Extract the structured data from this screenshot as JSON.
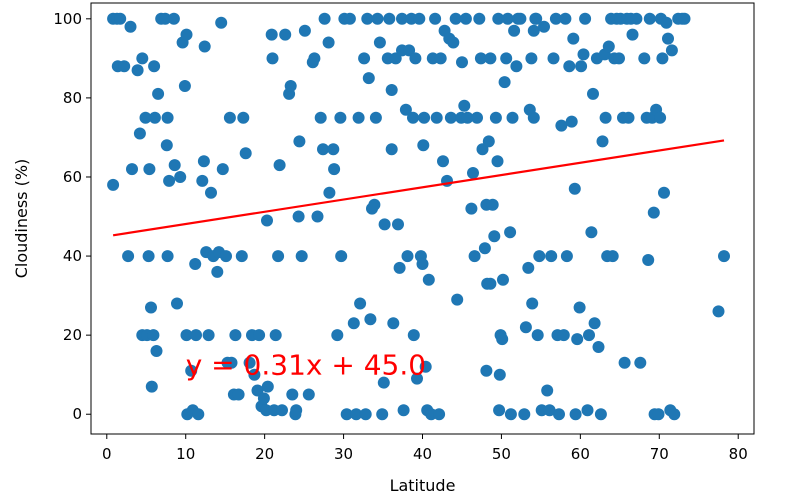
{
  "chart_data": {
    "type": "scatter",
    "xlabel": "Latitude",
    "ylabel": "Cloudiness (%)",
    "xlim": [
      -2,
      82
    ],
    "ylim": [
      -5,
      104
    ],
    "xticks": [
      0,
      10,
      20,
      30,
      40,
      50,
      60,
      70,
      80
    ],
    "yticks": [
      0,
      20,
      40,
      60,
      80,
      100
    ],
    "point_color": "#1f77b4",
    "line_color": "#ff0000",
    "grid": false,
    "points": [
      [
        0.8,
        58
      ],
      [
        0.8,
        100
      ],
      [
        1.3,
        100
      ],
      [
        1.4,
        88
      ],
      [
        1.7,
        100
      ],
      [
        2.2,
        88
      ],
      [
        2.7,
        40
      ],
      [
        3.0,
        98
      ],
      [
        3.2,
        62
      ],
      [
        3.9,
        87
      ],
      [
        4.2,
        71
      ],
      [
        4.5,
        90
      ],
      [
        4.5,
        20
      ],
      [
        4.9,
        75
      ],
      [
        5.1,
        20
      ],
      [
        5.3,
        40
      ],
      [
        5.4,
        62
      ],
      [
        5.6,
        27
      ],
      [
        5.7,
        7
      ],
      [
        5.9,
        20
      ],
      [
        6.0,
        88
      ],
      [
        6.1,
        75
      ],
      [
        6.3,
        16
      ],
      [
        6.5,
        81
      ],
      [
        6.9,
        100
      ],
      [
        7.4,
        100
      ],
      [
        7.6,
        68
      ],
      [
        7.7,
        40
      ],
      [
        7.7,
        75
      ],
      [
        7.9,
        59
      ],
      [
        8.5,
        100
      ],
      [
        8.6,
        63
      ],
      [
        8.9,
        28
      ],
      [
        9.3,
        60
      ],
      [
        9.6,
        94
      ],
      [
        9.9,
        83
      ],
      [
        10.1,
        96
      ],
      [
        10.1,
        20
      ],
      [
        10.2,
        0
      ],
      [
        10.7,
        11
      ],
      [
        10.9,
        1
      ],
      [
        11.2,
        38
      ],
      [
        11.3,
        20
      ],
      [
        11.6,
        0
      ],
      [
        12.1,
        59
      ],
      [
        12.3,
        64
      ],
      [
        12.4,
        93
      ],
      [
        12.6,
        41
      ],
      [
        12.9,
        20
      ],
      [
        13.2,
        56
      ],
      [
        13.5,
        40
      ],
      [
        14.0,
        36
      ],
      [
        14.2,
        41
      ],
      [
        14.5,
        99
      ],
      [
        14.7,
        62
      ],
      [
        15.1,
        40
      ],
      [
        15.3,
        13
      ],
      [
        15.6,
        75
      ],
      [
        15.8,
        13
      ],
      [
        16.1,
        5
      ],
      [
        16.3,
        20
      ],
      [
        16.7,
        5
      ],
      [
        17.1,
        40
      ],
      [
        17.3,
        75
      ],
      [
        17.6,
        66
      ],
      [
        18.1,
        13
      ],
      [
        18.4,
        20
      ],
      [
        18.7,
        10
      ],
      [
        19.1,
        6
      ],
      [
        19.3,
        20
      ],
      [
        19.6,
        2
      ],
      [
        19.9,
        4
      ],
      [
        20.2,
        1
      ],
      [
        20.3,
        49
      ],
      [
        20.4,
        7
      ],
      [
        20.9,
        96
      ],
      [
        21.0,
        90
      ],
      [
        21.2,
        1
      ],
      [
        21.4,
        20
      ],
      [
        21.7,
        40
      ],
      [
        21.9,
        63
      ],
      [
        22.2,
        1
      ],
      [
        22.6,
        96
      ],
      [
        23.1,
        81
      ],
      [
        23.3,
        83
      ],
      [
        23.5,
        5
      ],
      [
        23.9,
        0
      ],
      [
        24.0,
        1
      ],
      [
        24.3,
        50
      ],
      [
        24.4,
        69
      ],
      [
        24.7,
        40
      ],
      [
        25.1,
        97
      ],
      [
        25.6,
        5
      ],
      [
        26.1,
        89
      ],
      [
        26.3,
        90
      ],
      [
        26.7,
        50
      ],
      [
        27.1,
        75
      ],
      [
        27.4,
        67
      ],
      [
        27.6,
        100
      ],
      [
        28.1,
        94
      ],
      [
        28.2,
        56
      ],
      [
        28.7,
        67
      ],
      [
        28.8,
        62
      ],
      [
        29.2,
        20
      ],
      [
        29.7,
        40
      ],
      [
        29.6,
        75
      ],
      [
        30.1,
        100
      ],
      [
        30.4,
        0
      ],
      [
        30.8,
        100
      ],
      [
        31.3,
        23
      ],
      [
        31.6,
        0
      ],
      [
        31.9,
        75
      ],
      [
        32.1,
        28
      ],
      [
        32.6,
        90
      ],
      [
        32.8,
        0
      ],
      [
        33.0,
        100
      ],
      [
        33.2,
        85
      ],
      [
        33.4,
        24
      ],
      [
        33.6,
        52
      ],
      [
        33.9,
        53
      ],
      [
        34.1,
        75
      ],
      [
        34.3,
        100
      ],
      [
        34.6,
        94
      ],
      [
        34.9,
        0
      ],
      [
        35.1,
        8
      ],
      [
        35.2,
        48
      ],
      [
        35.6,
        90
      ],
      [
        35.8,
        100
      ],
      [
        36.1,
        82
      ],
      [
        36.1,
        67
      ],
      [
        36.3,
        23
      ],
      [
        36.6,
        90
      ],
      [
        36.9,
        48
      ],
      [
        37.1,
        37
      ],
      [
        37.4,
        92
      ],
      [
        37.4,
        100
      ],
      [
        37.6,
        1
      ],
      [
        37.9,
        77
      ],
      [
        38.1,
        40
      ],
      [
        38.3,
        92
      ],
      [
        38.6,
        100
      ],
      [
        38.8,
        75
      ],
      [
        38.9,
        20
      ],
      [
        39.1,
        90
      ],
      [
        39.3,
        9
      ],
      [
        39.6,
        100
      ],
      [
        39.8,
        40
      ],
      [
        40.0,
        38
      ],
      [
        40.1,
        68
      ],
      [
        40.2,
        75
      ],
      [
        40.4,
        12
      ],
      [
        40.6,
        1
      ],
      [
        40.8,
        34
      ],
      [
        41.1,
        0
      ],
      [
        41.3,
        90
      ],
      [
        41.6,
        100
      ],
      [
        41.8,
        75
      ],
      [
        42.1,
        0
      ],
      [
        42.3,
        90
      ],
      [
        42.6,
        64
      ],
      [
        42.8,
        97
      ],
      [
        43.1,
        59
      ],
      [
        43.4,
        95
      ],
      [
        43.6,
        75
      ],
      [
        43.9,
        94
      ],
      [
        44.2,
        100
      ],
      [
        44.4,
        29
      ],
      [
        44.9,
        75
      ],
      [
        45.0,
        89
      ],
      [
        45.3,
        78
      ],
      [
        45.5,
        100
      ],
      [
        45.7,
        75
      ],
      [
        46.2,
        52
      ],
      [
        46.4,
        61
      ],
      [
        46.6,
        40
      ],
      [
        46.9,
        75
      ],
      [
        47.2,
        100
      ],
      [
        47.4,
        90
      ],
      [
        47.6,
        67
      ],
      [
        47.9,
        42
      ],
      [
        48.1,
        11
      ],
      [
        48.1,
        53
      ],
      [
        48.2,
        33
      ],
      [
        48.4,
        69
      ],
      [
        48.6,
        90
      ],
      [
        48.6,
        33
      ],
      [
        48.9,
        53
      ],
      [
        49.1,
        45
      ],
      [
        49.3,
        75
      ],
      [
        49.5,
        64
      ],
      [
        49.6,
        100
      ],
      [
        49.7,
        1
      ],
      [
        49.8,
        10
      ],
      [
        49.9,
        20
      ],
      [
        50.1,
        19
      ],
      [
        50.2,
        34
      ],
      [
        50.4,
        84
      ],
      [
        50.6,
        90
      ],
      [
        50.8,
        100
      ],
      [
        51.1,
        46
      ],
      [
        51.2,
        0
      ],
      [
        51.4,
        75
      ],
      [
        51.6,
        97
      ],
      [
        51.9,
        88
      ],
      [
        52.1,
        100
      ],
      [
        52.4,
        100
      ],
      [
        52.9,
        0
      ],
      [
        53.1,
        22
      ],
      [
        53.4,
        37
      ],
      [
        53.6,
        77
      ],
      [
        53.8,
        90
      ],
      [
        53.9,
        28
      ],
      [
        54.1,
        97
      ],
      [
        54.1,
        75
      ],
      [
        54.3,
        100
      ],
      [
        54.4,
        100
      ],
      [
        54.6,
        20
      ],
      [
        54.8,
        40
      ],
      [
        55.1,
        1
      ],
      [
        55.4,
        98
      ],
      [
        55.8,
        6
      ],
      [
        56.1,
        1
      ],
      [
        56.3,
        40
      ],
      [
        56.6,
        90
      ],
      [
        56.9,
        100
      ],
      [
        57.1,
        20
      ],
      [
        57.3,
        0
      ],
      [
        57.6,
        73
      ],
      [
        57.9,
        20
      ],
      [
        58.1,
        100
      ],
      [
        58.3,
        40
      ],
      [
        58.6,
        88
      ],
      [
        58.9,
        74
      ],
      [
        59.1,
        95
      ],
      [
        59.3,
        57
      ],
      [
        59.4,
        0
      ],
      [
        59.6,
        19
      ],
      [
        59.9,
        27
      ],
      [
        60.1,
        88
      ],
      [
        60.4,
        91
      ],
      [
        60.6,
        100
      ],
      [
        60.9,
        1
      ],
      [
        61.1,
        20
      ],
      [
        61.4,
        46
      ],
      [
        61.6,
        81
      ],
      [
        61.8,
        23
      ],
      [
        62.1,
        90
      ],
      [
        62.3,
        17
      ],
      [
        62.6,
        0
      ],
      [
        62.8,
        69
      ],
      [
        63.1,
        91
      ],
      [
        63.2,
        75
      ],
      [
        63.4,
        40
      ],
      [
        63.6,
        93
      ],
      [
        63.9,
        100
      ],
      [
        64.1,
        40
      ],
      [
        64.3,
        90
      ],
      [
        64.6,
        100
      ],
      [
        64.9,
        90
      ],
      [
        65.1,
        100
      ],
      [
        65.4,
        75
      ],
      [
        65.6,
        13
      ],
      [
        65.9,
        100
      ],
      [
        66.1,
        75
      ],
      [
        66.4,
        100
      ],
      [
        66.6,
        96
      ],
      [
        67.1,
        100
      ],
      [
        67.6,
        13
      ],
      [
        68.1,
        90
      ],
      [
        68.4,
        75
      ],
      [
        68.6,
        39
      ],
      [
        68.8,
        100
      ],
      [
        69.1,
        75
      ],
      [
        69.3,
        51
      ],
      [
        69.4,
        0
      ],
      [
        69.6,
        77
      ],
      [
        69.9,
        0
      ],
      [
        70.1,
        75
      ],
      [
        70.2,
        100
      ],
      [
        70.4,
        90
      ],
      [
        70.6,
        56
      ],
      [
        70.9,
        99
      ],
      [
        71.1,
        95
      ],
      [
        71.4,
        1
      ],
      [
        71.6,
        92
      ],
      [
        71.9,
        0
      ],
      [
        72.4,
        100
      ],
      [
        72.9,
        100
      ],
      [
        73.2,
        100
      ],
      [
        77.5,
        26
      ],
      [
        78.2,
        40
      ]
    ],
    "regression": {
      "slope": 0.31,
      "intercept": 45.0,
      "x_range": [
        0.8,
        78.2
      ],
      "equation_text": "y = 0.31x + 45.0",
      "annotation_at": [
        10,
        10
      ]
    }
  }
}
